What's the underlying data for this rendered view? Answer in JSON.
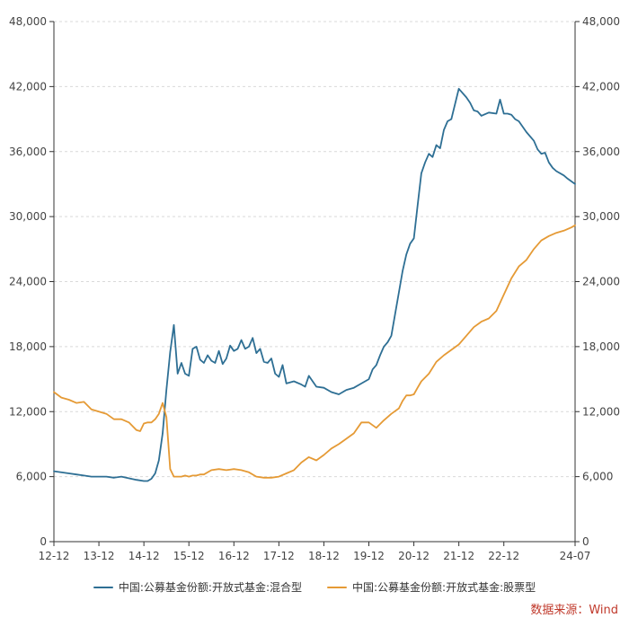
{
  "chart_data": {
    "type": "line",
    "title": "",
    "xlabel": "",
    "ylabel": "",
    "x_ticks": [
      "12-12",
      "13-12",
      "14-12",
      "15-12",
      "16-12",
      "17-12",
      "18-12",
      "19-12",
      "20-12",
      "21-12",
      "22-12",
      "24-07"
    ],
    "x_tick_months": [
      0,
      12,
      24,
      36,
      48,
      60,
      72,
      84,
      96,
      108,
      120,
      139
    ],
    "x_range_months": [
      0,
      139
    ],
    "y_ticks_left": [
      "0",
      "6,000",
      "12,000",
      "18,000",
      "24,000",
      "30,000",
      "36,000",
      "42,000",
      "48,000"
    ],
    "y_ticks_right": [
      "0",
      "6,000",
      "12,000",
      "18,000",
      "24,000",
      "30,000",
      "36,000",
      "42,000",
      "48,000"
    ],
    "ylim": [
      0,
      48000
    ],
    "grid": "horizontal dashed",
    "x_start": "2012-12",
    "x_unit": "months since 2012-12",
    "series": [
      {
        "name": "中国:公募基金份额:开放式基金:混合型",
        "color": "#2e6f94",
        "x": [
          0,
          4,
          6,
          8,
          10,
          14,
          16,
          18,
          22,
          24,
          25,
          26,
          27,
          28,
          29,
          30,
          31,
          32,
          33,
          34,
          35,
          36,
          37,
          38,
          39,
          40,
          41,
          42,
          43,
          44,
          45,
          46,
          47,
          48,
          49,
          50,
          51,
          52,
          53,
          54,
          55,
          56,
          57,
          58,
          59,
          60,
          61,
          62,
          64,
          66,
          67,
          68,
          70,
          72,
          74,
          76,
          78,
          80,
          82,
          84,
          85,
          86,
          87,
          88,
          89,
          90,
          91,
          92,
          93,
          94,
          95,
          96,
          97,
          98,
          99,
          100,
          101,
          102,
          103,
          104,
          105,
          106,
          108,
          110,
          111,
          112,
          113,
          114,
          116,
          118,
          119,
          120,
          121,
          122,
          123,
          124,
          126,
          128,
          129,
          130,
          131,
          132,
          133,
          134,
          136,
          137,
          139
        ],
        "values": [
          6500,
          6300,
          6200,
          6100,
          6000,
          6000,
          5900,
          6000,
          5700,
          5600,
          5600,
          5800,
          6300,
          7500,
          10000,
          14000,
          17500,
          20000,
          15500,
          16500,
          15500,
          15300,
          17800,
          18000,
          16800,
          16500,
          17200,
          16700,
          16500,
          17600,
          16400,
          16900,
          18100,
          17600,
          17800,
          18600,
          17800,
          18000,
          18800,
          17400,
          17800,
          16600,
          16500,
          16900,
          15500,
          15200,
          16300,
          14600,
          14800,
          14500,
          14300,
          15300,
          14300,
          14200,
          13800,
          13600,
          14000,
          14200,
          14600,
          15000,
          15900,
          16300,
          17200,
          18000,
          18400,
          19000,
          21000,
          23000,
          25000,
          26500,
          27500,
          28000,
          31000,
          34000,
          35000,
          35800,
          35500,
          36600,
          36300,
          38000,
          38800,
          39000,
          41800,
          41000,
          40500,
          39800,
          39700,
          39300,
          39600,
          39500,
          40800,
          39500,
          39500,
          39400,
          39000,
          38800,
          37800,
          37000,
          36200,
          35800,
          35900,
          35000,
          34500,
          34200,
          33800,
          33500,
          33000
        ]
      },
      {
        "name": "中国:公募基金份额:开放式基金:股票型",
        "color": "#e59a35",
        "x": [
          0,
          2,
          4,
          6,
          8,
          10,
          12,
          14,
          16,
          18,
          20,
          22,
          23,
          24,
          25,
          26,
          27,
          28,
          29,
          30,
          31,
          32,
          33,
          34,
          35,
          36,
          37,
          38,
          39,
          40,
          42,
          44,
          46,
          48,
          50,
          52,
          54,
          56,
          58,
          60,
          62,
          64,
          66,
          68,
          70,
          72,
          74,
          76,
          78,
          80,
          82,
          84,
          86,
          88,
          90,
          92,
          93,
          94,
          95,
          96,
          97,
          98,
          100,
          102,
          104,
          106,
          108,
          110,
          112,
          114,
          116,
          118,
          120,
          122,
          124,
          126,
          128,
          130,
          132,
          134,
          136,
          138,
          139
        ],
        "values": [
          13800,
          13300,
          13100,
          12800,
          12900,
          12200,
          12000,
          11800,
          11300,
          11300,
          11000,
          10300,
          10200,
          10900,
          11000,
          11000,
          11300,
          11800,
          12800,
          11500,
          6700,
          6000,
          6000,
          6000,
          6100,
          6000,
          6100,
          6100,
          6200,
          6200,
          6600,
          6700,
          6600,
          6700,
          6600,
          6400,
          6000,
          5900,
          5900,
          6000,
          6300,
          6600,
          7300,
          7800,
          7500,
          8000,
          8600,
          9000,
          9500,
          10000,
          11000,
          11000,
          10500,
          11200,
          11800,
          12300,
          13000,
          13500,
          13500,
          13600,
          14200,
          14800,
          15500,
          16600,
          17200,
          17700,
          18200,
          19000,
          19800,
          20300,
          20600,
          21300,
          22800,
          24300,
          25400,
          26000,
          27000,
          27800,
          28200,
          28500,
          28700,
          29000,
          29200
        ]
      }
    ]
  },
  "legend": {
    "series1_label": "中国:公募基金份额:开放式基金:混合型",
    "series2_label": "中国:公募基金份额:开放式基金:股票型"
  },
  "source": {
    "text": "数据来源：Wind",
    "color": "#c0392b"
  }
}
